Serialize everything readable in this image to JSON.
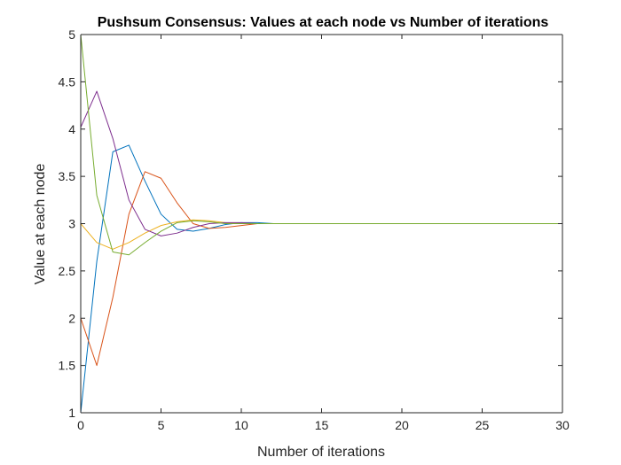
{
  "chart_data": {
    "type": "line",
    "title": "Pushsum Consensus: Values at each node vs Number of iterations",
    "xlabel": "Number of iterations",
    "ylabel": "Value at each node",
    "xlim": [
      0,
      30
    ],
    "ylim": [
      1,
      5
    ],
    "xticks": [
      0,
      5,
      10,
      15,
      20,
      25,
      30
    ],
    "yticks": [
      1,
      1.5,
      2,
      2.5,
      3,
      3.5,
      4,
      4.5,
      5
    ],
    "ytick_labels": [
      "1",
      "1.5",
      "2",
      "2.5",
      "3",
      "3.5",
      "4",
      "4.5",
      "5"
    ],
    "grid": false,
    "legend": "none",
    "x": [
      0,
      1,
      2,
      3,
      4,
      5,
      6,
      7,
      8,
      9,
      10,
      11,
      12,
      13,
      14,
      15,
      16,
      17,
      18,
      19,
      20,
      21,
      22,
      23,
      24,
      25,
      26,
      27,
      28,
      29,
      30
    ],
    "series": [
      {
        "color": "#0072BD",
        "values": [
          1.0,
          2.6,
          3.76,
          3.83,
          3.45,
          3.1,
          2.94,
          2.92,
          2.95,
          2.99,
          3.01,
          3.01,
          3.0,
          3.0,
          3.0,
          3.0,
          3.0,
          3.0,
          3.0,
          3.0,
          3.0,
          3.0,
          3.0,
          3.0,
          3.0,
          3.0,
          3.0,
          3.0,
          3.0,
          3.0,
          3.0
        ]
      },
      {
        "color": "#D95319",
        "values": [
          2.0,
          1.5,
          2.22,
          3.1,
          3.55,
          3.48,
          3.22,
          3.0,
          2.95,
          2.96,
          2.98,
          3.0,
          3.0,
          3.0,
          3.0,
          3.0,
          3.0,
          3.0,
          3.0,
          3.0,
          3.0,
          3.0,
          3.0,
          3.0,
          3.0,
          3.0,
          3.0,
          3.0,
          3.0,
          3.0,
          3.0
        ]
      },
      {
        "color": "#EDB120",
        "values": [
          3.0,
          2.8,
          2.73,
          2.8,
          2.9,
          2.98,
          3.02,
          3.04,
          3.03,
          3.01,
          3.0,
          3.0,
          3.0,
          3.0,
          3.0,
          3.0,
          3.0,
          3.0,
          3.0,
          3.0,
          3.0,
          3.0,
          3.0,
          3.0,
          3.0,
          3.0,
          3.0,
          3.0,
          3.0,
          3.0,
          3.0
        ]
      },
      {
        "color": "#7E2F8E",
        "values": [
          4.02,
          4.4,
          3.9,
          3.25,
          2.94,
          2.87,
          2.9,
          2.96,
          3.0,
          3.01,
          3.01,
          3.0,
          3.0,
          3.0,
          3.0,
          3.0,
          3.0,
          3.0,
          3.0,
          3.0,
          3.0,
          3.0,
          3.0,
          3.0,
          3.0,
          3.0,
          3.0,
          3.0,
          3.0,
          3.0,
          3.0
        ]
      },
      {
        "color": "#77AC30",
        "values": [
          5.0,
          3.3,
          2.7,
          2.67,
          2.8,
          2.92,
          3.01,
          3.03,
          3.02,
          3.0,
          3.0,
          3.0,
          3.0,
          3.0,
          3.0,
          3.0,
          3.0,
          3.0,
          3.0,
          3.0,
          3.0,
          3.0,
          3.0,
          3.0,
          3.0,
          3.0,
          3.0,
          3.0,
          3.0,
          3.0,
          3.0
        ]
      }
    ]
  }
}
